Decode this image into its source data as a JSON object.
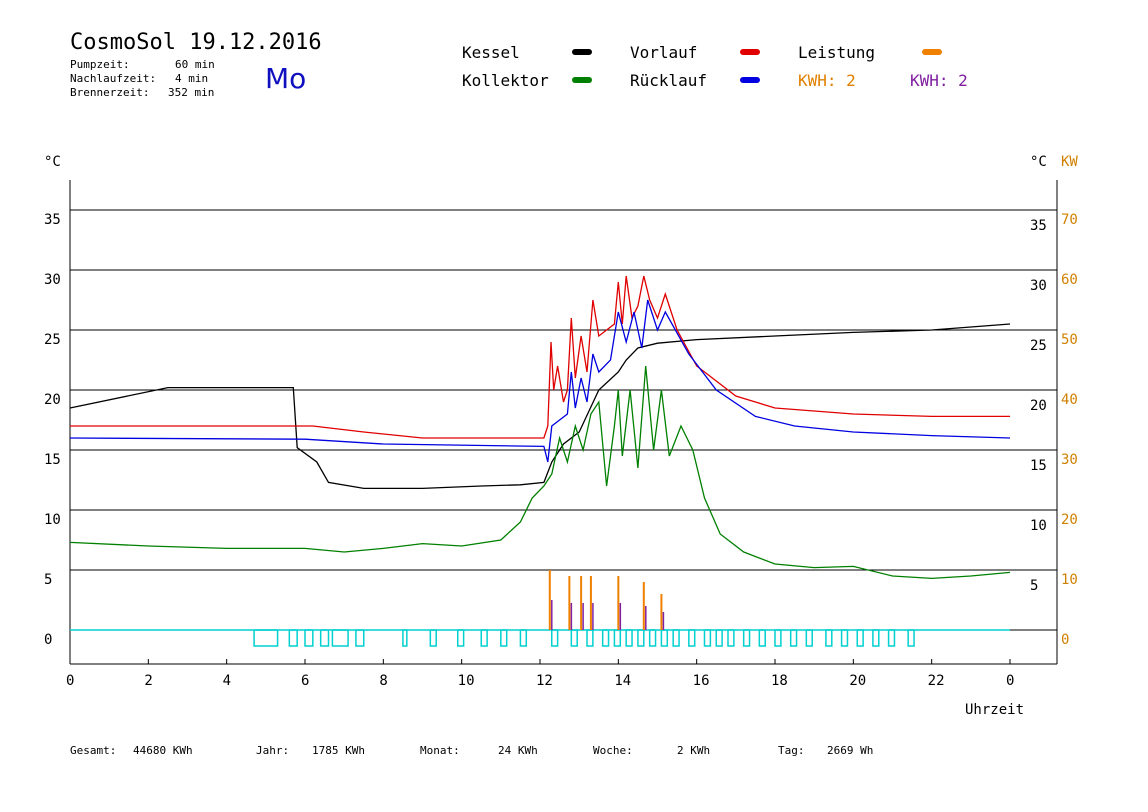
{
  "header": {
    "title": "CosmoSol 19.12.2016",
    "day": "Mo",
    "pumpzeit_label": "Pumpzeit:",
    "pumpzeit_value": "60 min",
    "nachlaufzeit_label": "Nachlaufzeit:",
    "nachlaufzeit_value": "4 min",
    "brennerzeit_label": "Brennerzeit:",
    "brennerzeit_value": "352 min"
  },
  "legend": {
    "kessel": "Kessel",
    "vorlauf": "Vorlauf",
    "leistung": "Leistung",
    "kollektor": "Kollektor",
    "ruecklauf": "Rücklauf",
    "kwh1": "KWH: 2",
    "kwh2": "KWH: 2"
  },
  "colors": {
    "kessel": "#000000",
    "vorlauf": "#e00000",
    "leistung": "#f08000",
    "kollektor": "#008000",
    "ruecklauf": "#0000e0",
    "kwh1": "#e08000",
    "kwh2": "#8020a0",
    "pump": "#00d0d0",
    "kw_axis": "#d08000"
  },
  "footer": {
    "gesamt_label": "Gesamt:",
    "gesamt_value": "44680 KWh",
    "jahr_label": "Jahr:",
    "jahr_value": "1785 KWh",
    "monat_label": "Monat:",
    "monat_value": "24 KWh",
    "woche_label": "Woche:",
    "woche_value": "2 KWh",
    "tag_label": "Tag:",
    "tag_value": "2669 Wh"
  },
  "chart_data": {
    "type": "line",
    "xlabel": "Uhrzeit",
    "ylabel_left": "°C",
    "ylabel_right_c": "°C",
    "ylabel_right_kw": "KW",
    "x_ticks": [
      "0",
      "2",
      "4",
      "6",
      "8",
      "10",
      "12",
      "14",
      "16",
      "18",
      "20",
      "22",
      "0"
    ],
    "y_ticks_left": [
      "35",
      "30",
      "25",
      "20",
      "15",
      "10",
      "5",
      "0"
    ],
    "y_ticks_right_c": [
      "35",
      "30",
      "25",
      "20",
      "15",
      "10",
      "5"
    ],
    "y_ticks_right_kw": [
      "70",
      "60",
      "50",
      "40",
      "30",
      "20",
      "10",
      "0"
    ],
    "xlim": [
      0,
      24
    ],
    "ylim": [
      -3,
      38
    ],
    "series": [
      {
        "name": "Kessel",
        "key": "kessel",
        "points": [
          [
            0,
            18.5
          ],
          [
            2.5,
            20.2
          ],
          [
            5.7,
            20.2
          ],
          [
            5.8,
            15.2
          ],
          [
            6.3,
            14
          ],
          [
            6.6,
            12.3
          ],
          [
            7.5,
            11.8
          ],
          [
            9,
            11.8
          ],
          [
            10.5,
            12
          ],
          [
            11.5,
            12.1
          ],
          [
            12.1,
            12.3
          ],
          [
            12.3,
            14
          ],
          [
            12.6,
            15.5
          ],
          [
            13,
            16.5
          ],
          [
            13.5,
            20
          ],
          [
            14,
            21.5
          ],
          [
            14.2,
            22.5
          ],
          [
            14.5,
            23.5
          ],
          [
            15,
            23.9
          ],
          [
            16,
            24.2
          ],
          [
            18,
            24.5
          ],
          [
            20,
            24.8
          ],
          [
            22,
            25
          ],
          [
            24,
            25.5
          ]
        ]
      },
      {
        "name": "Vorlauf",
        "key": "vorlauf",
        "points": [
          [
            0,
            17.0
          ],
          [
            5.5,
            17
          ],
          [
            6.2,
            17
          ],
          [
            7.5,
            16.5
          ],
          [
            9,
            16
          ],
          [
            12.1,
            16
          ],
          [
            12.2,
            17
          ],
          [
            12.28,
            24
          ],
          [
            12.35,
            20
          ],
          [
            12.45,
            22
          ],
          [
            12.6,
            19
          ],
          [
            12.7,
            20
          ],
          [
            12.8,
            26
          ],
          [
            12.9,
            21
          ],
          [
            13.05,
            24.5
          ],
          [
            13.2,
            21.5
          ],
          [
            13.35,
            27.5
          ],
          [
            13.5,
            24.5
          ],
          [
            13.7,
            25
          ],
          [
            13.9,
            25.5
          ],
          [
            14,
            29
          ],
          [
            14.1,
            25.5
          ],
          [
            14.2,
            29.5
          ],
          [
            14.35,
            26
          ],
          [
            14.5,
            27
          ],
          [
            14.65,
            29.5
          ],
          [
            14.8,
            27.5
          ],
          [
            15,
            26
          ],
          [
            15.2,
            28
          ],
          [
            15.5,
            25
          ],
          [
            16,
            22
          ],
          [
            17,
            19.5
          ],
          [
            18,
            18.5
          ],
          [
            20,
            18
          ],
          [
            22,
            17.8
          ],
          [
            24,
            17.8
          ]
        ]
      },
      {
        "name": "Rücklauf",
        "key": "ruecklauf",
        "points": [
          [
            0,
            16
          ],
          [
            6,
            15.9
          ],
          [
            8,
            15.5
          ],
          [
            12.1,
            15.3
          ],
          [
            12.2,
            14
          ],
          [
            12.3,
            17
          ],
          [
            12.5,
            17.5
          ],
          [
            12.7,
            18
          ],
          [
            12.8,
            21.5
          ],
          [
            12.9,
            18.5
          ],
          [
            13.05,
            21
          ],
          [
            13.2,
            19
          ],
          [
            13.35,
            23
          ],
          [
            13.5,
            21.5
          ],
          [
            13.8,
            22.5
          ],
          [
            14,
            26.5
          ],
          [
            14.2,
            24
          ],
          [
            14.4,
            26.5
          ],
          [
            14.6,
            23.5
          ],
          [
            14.75,
            27.5
          ],
          [
            15,
            25
          ],
          [
            15.2,
            26.5
          ],
          [
            15.8,
            23
          ],
          [
            16.5,
            20
          ],
          [
            17.5,
            17.8
          ],
          [
            18.5,
            17
          ],
          [
            20,
            16.5
          ],
          [
            22,
            16.2
          ],
          [
            24,
            16
          ]
        ]
      },
      {
        "name": "Kollektor",
        "key": "kollektor",
        "points": [
          [
            0,
            7.3
          ],
          [
            2,
            7
          ],
          [
            4,
            6.8
          ],
          [
            6,
            6.8
          ],
          [
            7,
            6.5
          ],
          [
            8,
            6.8
          ],
          [
            9,
            7.2
          ],
          [
            10,
            7
          ],
          [
            11,
            7.5
          ],
          [
            11.5,
            9
          ],
          [
            11.8,
            11
          ],
          [
            12.1,
            12
          ],
          [
            12.3,
            13
          ],
          [
            12.5,
            16
          ],
          [
            12.7,
            14
          ],
          [
            12.9,
            17
          ],
          [
            13.1,
            15
          ],
          [
            13.3,
            18
          ],
          [
            13.5,
            19
          ],
          [
            13.7,
            12
          ],
          [
            13.9,
            17
          ],
          [
            14,
            20
          ],
          [
            14.1,
            14.5
          ],
          [
            14.3,
            20
          ],
          [
            14.5,
            13.5
          ],
          [
            14.7,
            22
          ],
          [
            14.9,
            15
          ],
          [
            15.1,
            20
          ],
          [
            15.3,
            14.5
          ],
          [
            15.6,
            17
          ],
          [
            15.9,
            15
          ],
          [
            16.2,
            11
          ],
          [
            16.6,
            8
          ],
          [
            17.2,
            6.5
          ],
          [
            18,
            5.5
          ],
          [
            19,
            5.2
          ],
          [
            20,
            5.3
          ],
          [
            21,
            4.5
          ],
          [
            22,
            4.3
          ],
          [
            23,
            4.5
          ],
          [
            24,
            4.8
          ]
        ]
      }
    ],
    "leistung_spikes_kw": [
      [
        12.25,
        10
      ],
      [
        12.75,
        9
      ],
      [
        13.05,
        9
      ],
      [
        13.3,
        9
      ],
      [
        14.0,
        9
      ],
      [
        14.65,
        8
      ],
      [
        15.1,
        6
      ]
    ],
    "pump_pulses": [
      [
        4.7,
        5.3
      ],
      [
        5.6,
        5.8
      ],
      [
        6.0,
        6.2
      ],
      [
        6.4,
        6.6
      ],
      [
        6.7,
        7.1
      ],
      [
        7.3,
        7.5
      ],
      [
        8.5,
        8.6
      ],
      [
        9.2,
        9.35
      ],
      [
        9.9,
        10.05
      ],
      [
        10.5,
        10.65
      ],
      [
        11.0,
        11.15
      ],
      [
        11.5,
        11.65
      ],
      [
        12.3,
        12.45
      ],
      [
        12.8,
        12.95
      ],
      [
        13.2,
        13.35
      ],
      [
        13.6,
        13.75
      ],
      [
        13.9,
        14.05
      ],
      [
        14.2,
        14.35
      ],
      [
        14.5,
        14.65
      ],
      [
        14.8,
        14.95
      ],
      [
        15.1,
        15.25
      ],
      [
        15.4,
        15.55
      ],
      [
        15.8,
        15.95
      ],
      [
        16.2,
        16.35
      ],
      [
        16.5,
        16.65
      ],
      [
        16.8,
        16.95
      ],
      [
        17.2,
        17.35
      ],
      [
        17.6,
        17.75
      ],
      [
        18.0,
        18.15
      ],
      [
        18.4,
        18.55
      ],
      [
        18.8,
        18.95
      ],
      [
        19.3,
        19.45
      ],
      [
        19.7,
        19.85
      ],
      [
        20.1,
        20.25
      ],
      [
        20.5,
        20.65
      ],
      [
        20.9,
        21.05
      ],
      [
        21.4,
        21.55
      ]
    ]
  }
}
